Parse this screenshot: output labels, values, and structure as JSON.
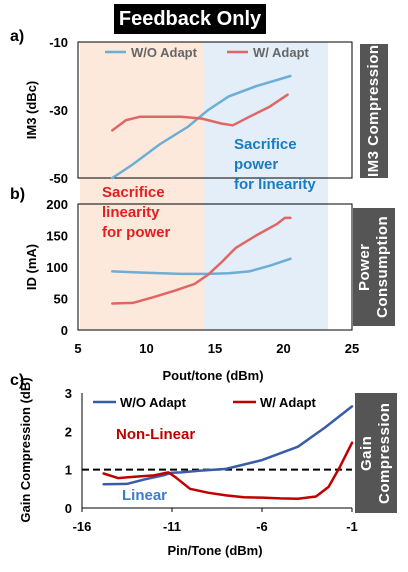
{
  "title": "Feedback Only",
  "side_tags": {
    "a": "IM3 Compression",
    "b": "Power Consumption",
    "c": "Gain Compression"
  },
  "chart_data": [
    {
      "panel": "a)",
      "type": "line",
      "ylabel": "IM3 (dBc)",
      "ylim": [
        -50,
        -10
      ],
      "yticks": [
        "-10",
        "-30",
        "-50"
      ],
      "xlim": [
        5,
        25
      ],
      "legend": [
        "W/O Adapt",
        "W/ Adapt"
      ],
      "colors": {
        "wo": "#6baed6",
        "w": "#e06666"
      },
      "series": [
        {
          "name": "W/O Adapt",
          "points": [
            [
              7.5,
              -50
            ],
            [
              9,
              -46
            ],
            [
              11,
              -40
            ],
            [
              13,
              -35
            ],
            [
              14.5,
              -30
            ],
            [
              16,
              -26
            ],
            [
              18,
              -23
            ],
            [
              20.5,
              -20
            ]
          ]
        },
        {
          "name": "W/ Adapt",
          "points": [
            [
              7.5,
              -36
            ],
            [
              8.5,
              -33
            ],
            [
              9.5,
              -32
            ],
            [
              11,
              -32
            ],
            [
              12.5,
              -32
            ],
            [
              14,
              -32.5
            ],
            [
              15.5,
              -34
            ],
            [
              16.3,
              -34.5
            ],
            [
              17.5,
              -32
            ],
            [
              19,
              -29
            ],
            [
              20.3,
              -25.5
            ]
          ]
        }
      ]
    },
    {
      "panel": "b)",
      "type": "line",
      "ylabel": "ID (mA)",
      "ylim": [
        0,
        200
      ],
      "yticks": [
        "200",
        "150",
        "100",
        "50",
        "0"
      ],
      "xlabel": "Pout/tone (dBm)",
      "xlim": [
        5,
        25
      ],
      "xticks": [
        "5",
        "10",
        "15",
        "20",
        "25"
      ],
      "series": [
        {
          "name": "W/O Adapt",
          "points": [
            [
              7.5,
              93
            ],
            [
              10,
              91
            ],
            [
              12.5,
              89
            ],
            [
              14.5,
              89
            ],
            [
              16,
              90
            ],
            [
              17.5,
              93
            ],
            [
              19,
              102
            ],
            [
              20.5,
              113
            ]
          ]
        },
        {
          "name": "W/ Adapt",
          "points": [
            [
              7.5,
              42
            ],
            [
              9,
              43
            ],
            [
              10.5,
              52
            ],
            [
              12,
              62
            ],
            [
              13.5,
              73
            ],
            [
              14.5,
              88
            ],
            [
              15.5,
              108
            ],
            [
              16.5,
              130
            ],
            [
              18,
              150
            ],
            [
              19.5,
              168
            ],
            [
              20.1,
              178
            ],
            [
              20.5,
              178
            ]
          ]
        }
      ]
    },
    {
      "panel": "c)",
      "type": "line",
      "ylabel": "Gain Compression (dB)",
      "ylim": [
        0,
        3
      ],
      "yticks": [
        "3",
        "2",
        "1",
        "0"
      ],
      "xlabel": "Pin/Tone (dBm)",
      "xlim": [
        -16,
        -1
      ],
      "xticks": [
        "-16",
        "-11",
        "-6",
        "-1"
      ],
      "legend": [
        "W/O Adapt",
        "W/ Adapt"
      ],
      "colors": {
        "wo": "#3a5ca8",
        "w": "#c00000"
      },
      "reference_line": 1.0,
      "series": [
        {
          "name": "W/O Adapt",
          "points": [
            [
              -14.8,
              0.62
            ],
            [
              -13.5,
              0.63
            ],
            [
              -12.5,
              0.75
            ],
            [
              -11.5,
              0.85
            ],
            [
              -11.0,
              0.92
            ],
            [
              -10.5,
              0.93
            ],
            [
              -9.5,
              0.97
            ],
            [
              -8,
              1.02
            ],
            [
              -6,
              1.25
            ],
            [
              -4,
              1.6
            ],
            [
              -2.5,
              2.1
            ],
            [
              -1,
              2.65
            ]
          ]
        },
        {
          "name": "W/ Adapt",
          "points": [
            [
              -14.8,
              0.9
            ],
            [
              -14,
              0.78
            ],
            [
              -13,
              0.82
            ],
            [
              -12,
              0.85
            ],
            [
              -11.2,
              0.93
            ],
            [
              -10.8,
              0.8
            ],
            [
              -10,
              0.5
            ],
            [
              -9,
              0.4
            ],
            [
              -8,
              0.33
            ],
            [
              -7,
              0.28
            ],
            [
              -6,
              0.27
            ],
            [
              -5,
              0.25
            ],
            [
              -4,
              0.24
            ],
            [
              -3,
              0.3
            ],
            [
              -2.3,
              0.55
            ],
            [
              -1.7,
              1.05
            ],
            [
              -1,
              1.7
            ]
          ]
        }
      ]
    }
  ],
  "annotations": {
    "sacrifice_linearity": [
      "Sacrifice",
      "linearity",
      "for power"
    ],
    "sacrifice_power": [
      "Sacrifice",
      "power",
      "for linearity"
    ],
    "nonlinear": "Non-Linear",
    "linear": "Linear"
  }
}
